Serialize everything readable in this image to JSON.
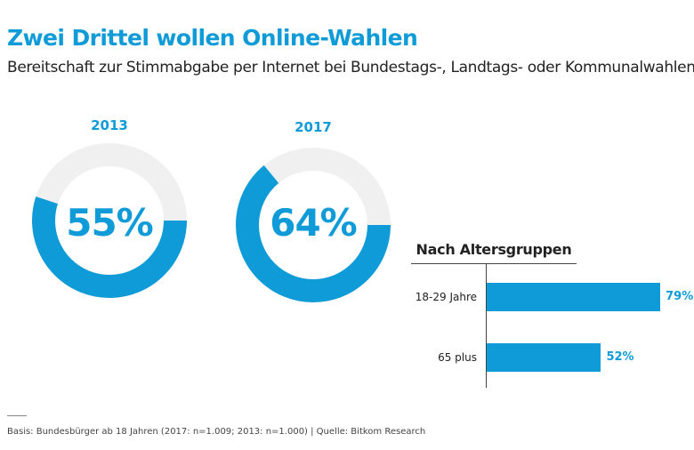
{
  "header": {
    "title": "Zwei Drittel wollen Online-Wahlen",
    "subtitle": "Bereitschaft zur Stimmabgabe per Internet bei Bundestags-, Landtags- oder Kommunalwahlen"
  },
  "colors": {
    "accent": "#0f9bd7",
    "track": "#f0f0f0",
    "text": "#222222"
  },
  "chart_data": [
    {
      "type": "pie",
      "variant": "donut",
      "title": "2013",
      "value": 55,
      "value_label": "55%",
      "unit": "%"
    },
    {
      "type": "pie",
      "variant": "donut",
      "title": "2017",
      "value": 64,
      "value_label": "64%",
      "unit": "%"
    },
    {
      "type": "bar",
      "orientation": "horizontal",
      "title": "Nach Altersgruppen",
      "categories": [
        "18-29 Jahre",
        "65 plus"
      ],
      "values": [
        79,
        52
      ],
      "value_labels": [
        "79%",
        "52%"
      ],
      "xlim": [
        0,
        100
      ],
      "unit": "%"
    }
  ],
  "footer": {
    "note": "Basis: Bundesbürger ab 18 Jahren (2017: n=1.009; 2013: n=1.000) | Quelle: Bitkom Research"
  }
}
